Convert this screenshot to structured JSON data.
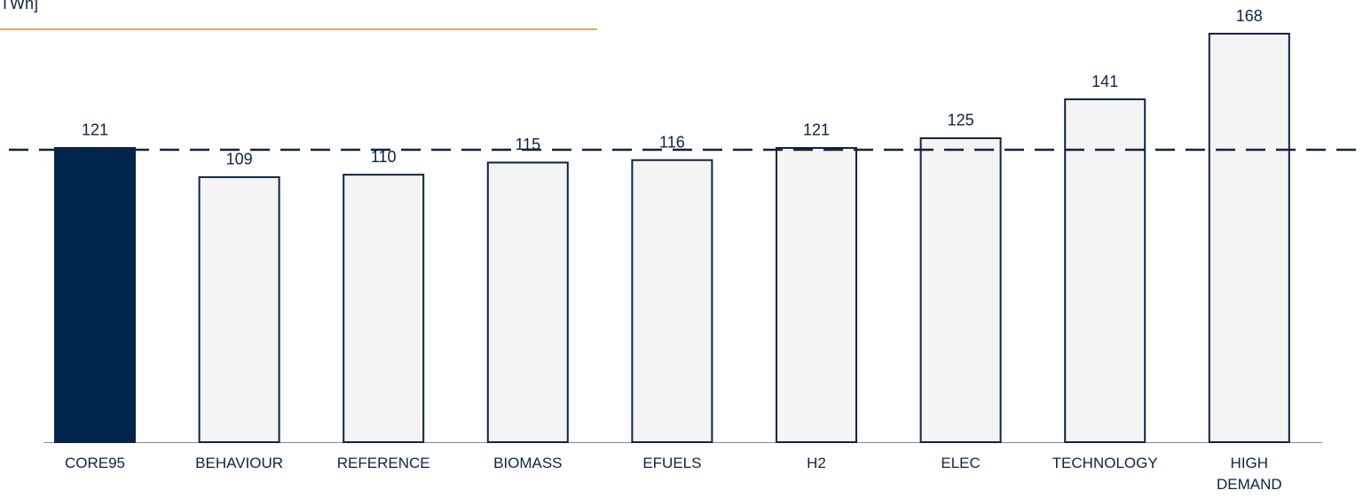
{
  "chart_data": {
    "type": "bar",
    "unit_label": "TWh]",
    "categories": [
      "CORE95",
      "BEHAVIOUR",
      "REFERENCE",
      "BIOMASS",
      "EFUELS",
      "H2",
      "ELEC",
      "TECHNOLOGY",
      "HIGH\nDEMAND"
    ],
    "values": [
      121,
      109,
      110,
      115,
      116,
      121,
      125,
      141,
      168
    ],
    "colors": [
      "#00264d",
      "#f4f4f4",
      "#f4f4f4",
      "#f4f4f4",
      "#f4f4f4",
      "#f4f4f4",
      "#f4f4f4",
      "#f4f4f4",
      "#f4f4f4"
    ],
    "ylim": [
      0,
      168
    ],
    "grid": false
  }
}
